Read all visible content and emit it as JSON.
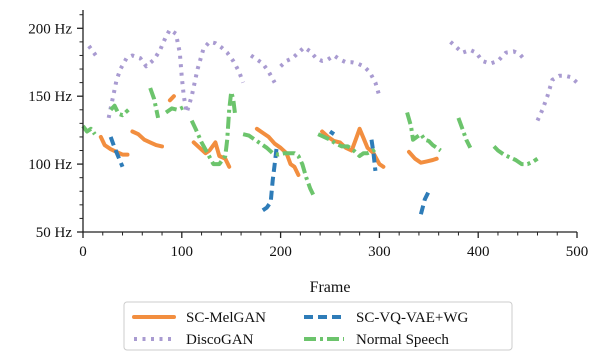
{
  "chart_data": {
    "type": "line",
    "xlabel": "Frame",
    "ylabel": "",
    "xlim": [
      0,
      500
    ],
    "ylim": [
      50,
      212
    ],
    "xticks": [
      0,
      100,
      200,
      300,
      400,
      500
    ],
    "xtick_labels": [
      "0",
      "100",
      "200",
      "300",
      "400",
      "500"
    ],
    "yticks": [
      50,
      100,
      150,
      200
    ],
    "ytick_labels": [
      "50 Hz",
      "100 Hz",
      "150 Hz",
      "200 Hz"
    ],
    "grid": false,
    "legend_position": "bottom",
    "series": [
      {
        "name": "SC-MelGAN",
        "color": "#f28e3f",
        "style": "solid",
        "segments": [
          [
            [
              18,
              120
            ],
            [
              22,
              114
            ],
            [
              28,
              111
            ],
            [
              34,
              109
            ],
            [
              40,
              107
            ],
            [
              45,
              107
            ]
          ],
          [
            [
              50,
              124
            ],
            [
              56,
              122
            ],
            [
              62,
              118
            ],
            [
              68,
              116
            ],
            [
              74,
              114
            ],
            [
              80,
              113
            ]
          ],
          [
            [
              88,
              147
            ],
            [
              92,
              150
            ]
          ],
          [
            [
              112,
              116
            ],
            [
              118,
              112
            ],
            [
              124,
              108
            ],
            [
              128,
              110
            ],
            [
              134,
              116
            ],
            [
              138,
              106
            ],
            [
              144,
              104
            ],
            [
              148,
              98
            ]
          ],
          [
            [
              176,
              126
            ],
            [
              182,
              123
            ],
            [
              188,
              120
            ],
            [
              194,
              115
            ],
            [
              200,
              112
            ],
            [
              206,
              108
            ],
            [
              210,
              100
            ],
            [
              214,
              98
            ],
            [
              218,
              92
            ]
          ],
          [
            [
              242,
              124
            ],
            [
              248,
              120
            ],
            [
              254,
              117
            ],
            [
              260,
              116
            ],
            [
              266,
              112
            ],
            [
              272,
              110
            ],
            [
              276,
              118
            ],
            [
              280,
              126
            ],
            [
              284,
              119
            ],
            [
              288,
              112
            ],
            [
              294,
              108
            ],
            [
              300,
              100
            ],
            [
              304,
              98
            ]
          ],
          [
            [
              330,
              109
            ],
            [
              336,
              104
            ],
            [
              342,
              101
            ],
            [
              348,
              102
            ],
            [
              354,
              103
            ],
            [
              358,
              104
            ]
          ]
        ]
      },
      {
        "name": "SC-VQ-VAE+WG",
        "color": "#2e7cb8",
        "style": "dashed",
        "segments": [
          [
            [
              28,
              120
            ],
            [
              32,
              112
            ],
            [
              36,
              105
            ],
            [
              40,
              98
            ]
          ],
          [
            [
              182,
              66
            ],
            [
              186,
              68
            ],
            [
              190,
              72
            ],
            [
              192,
              88
            ],
            [
              194,
              100
            ],
            [
              196,
              112
            ]
          ],
          [
            [
              250,
              124
            ],
            [
              254,
              122
            ]
          ],
          [
            [
              292,
              118
            ],
            [
              294,
              108
            ],
            [
              296,
              95
            ]
          ],
          [
            [
              342,
              63
            ],
            [
              346,
              74
            ],
            [
              350,
              80
            ]
          ]
        ]
      },
      {
        "name": "DiscoGAN",
        "color": "#a99bd1",
        "style": "dotted",
        "segments": [
          [
            [
              6,
              187
            ],
            [
              10,
              183
            ],
            [
              14,
              179
            ]
          ],
          [
            [
              26,
              134
            ],
            [
              30,
              148
            ],
            [
              34,
              162
            ],
            [
              38,
              170
            ],
            [
              44,
              178
            ],
            [
              50,
              180
            ],
            [
              58,
              178
            ],
            [
              64,
              172
            ],
            [
              72,
              177
            ],
            [
              78,
              184
            ],
            [
              84,
              194
            ],
            [
              88,
              199
            ],
            [
              94,
              196
            ],
            [
              98,
              182
            ],
            [
              100,
              164
            ],
            [
              102,
              150
            ],
            [
              105,
              138
            ],
            [
              110,
              150
            ],
            [
              116,
              170
            ],
            [
              122,
              185
            ],
            [
              128,
              190
            ],
            [
              134,
              189
            ],
            [
              140,
              186
            ],
            [
              146,
              182
            ],
            [
              152,
              176
            ],
            [
              158,
              168
            ],
            [
              162,
              160
            ]
          ],
          [
            [
              170,
              180
            ],
            [
              176,
              177
            ],
            [
              182,
              174
            ],
            [
              188,
              168
            ],
            [
              194,
              160
            ]
          ],
          [
            [
              200,
              172
            ],
            [
              206,
              176
            ],
            [
              212,
              178
            ],
            [
              218,
              182
            ],
            [
              224,
              186
            ],
            [
              230,
              183
            ],
            [
              236,
              178
            ],
            [
              242,
              176
            ],
            [
              248,
              177
            ],
            [
              254,
              180
            ],
            [
              260,
              177
            ],
            [
              266,
              175
            ],
            [
              272,
              175
            ],
            [
              278,
              174
            ],
            [
              284,
              172
            ],
            [
              290,
              168
            ],
            [
              296,
              160
            ],
            [
              300,
              150
            ]
          ],
          [
            [
              372,
              190
            ],
            [
              378,
              186
            ],
            [
              384,
              182
            ],
            [
              392,
              184
            ],
            [
              398,
              182
            ],
            [
              404,
              176
            ],
            [
              412,
              174
            ],
            [
              420,
              176
            ],
            [
              428,
              182
            ],
            [
              436,
              183
            ],
            [
              442,
              181
            ],
            [
              448,
              176
            ]
          ],
          [
            [
              460,
              132
            ],
            [
              465,
              140
            ],
            [
              470,
              150
            ],
            [
              475,
              162
            ],
            [
              482,
              165
            ],
            [
              488,
              165
            ],
            [
              494,
              164
            ],
            [
              500,
              160
            ]
          ]
        ]
      },
      {
        "name": "Normal Speech",
        "color": "#6cc46c",
        "style": "dashdot",
        "segments": [
          [
            [
              0,
              128
            ],
            [
              4,
              124
            ],
            [
              8,
              126
            ],
            [
              12,
              122
            ]
          ],
          [
            [
              28,
              140
            ],
            [
              32,
              143
            ],
            [
              36,
              137
            ],
            [
              40,
              136
            ],
            [
              46,
              140
            ]
          ],
          [
            [
              68,
              156
            ],
            [
              72,
              148
            ],
            [
              76,
              134
            ]
          ],
          [
            [
              84,
              138
            ],
            [
              90,
              141
            ],
            [
              96,
              140
            ],
            [
              102,
              142
            ]
          ],
          [
            [
              110,
              132
            ],
            [
              114,
              126
            ],
            [
              120,
              116
            ],
            [
              126,
              108
            ],
            [
              132,
              100
            ],
            [
              138,
              100
            ],
            [
              144,
              106
            ],
            [
              146,
              118
            ],
            [
              148,
              140
            ],
            [
              150,
              153
            ],
            [
              152,
              148
            ],
            [
              154,
              136
            ]
          ],
          [
            [
              162,
              122
            ],
            [
              168,
              121
            ],
            [
              174,
              118
            ],
            [
              180,
              115
            ],
            [
              186,
              112
            ],
            [
              192,
              108
            ],
            [
              198,
              107
            ],
            [
              204,
              108
            ],
            [
              210,
              108
            ],
            [
              214,
              108
            ],
            [
              218,
              106
            ],
            [
              222,
              100
            ],
            [
              226,
              90
            ],
            [
              230,
              82
            ],
            [
              234,
              76
            ]
          ],
          [
            [
              238,
              122
            ],
            [
              244,
              120
            ],
            [
              250,
              118
            ],
            [
              256,
              115
            ],
            [
              262,
              113
            ],
            [
              268,
              113
            ],
            [
              274,
              110
            ],
            [
              280,
              106
            ],
            [
              284,
              108
            ],
            [
              288,
              108
            ],
            [
              294,
              110
            ],
            [
              298,
              112
            ]
          ],
          [
            [
              328,
              138
            ],
            [
              332,
              128
            ],
            [
              334,
              118
            ],
            [
              338,
              120
            ],
            [
              342,
              122
            ],
            [
              346,
              118
            ],
            [
              350,
              117
            ],
            [
              354,
              114
            ],
            [
              358,
              112
            ],
            [
              362,
              110
            ]
          ],
          [
            [
              380,
              134
            ],
            [
              384,
              126
            ],
            [
              388,
              118
            ],
            [
              392,
              112
            ]
          ],
          [
            [
              416,
              113
            ],
            [
              420,
              110
            ],
            [
              426,
              107
            ],
            [
              432,
              105
            ],
            [
              438,
              103
            ],
            [
              444,
              100
            ],
            [
              450,
              100
            ],
            [
              456,
              102
            ],
            [
              460,
              104
            ]
          ]
        ]
      }
    ]
  }
}
